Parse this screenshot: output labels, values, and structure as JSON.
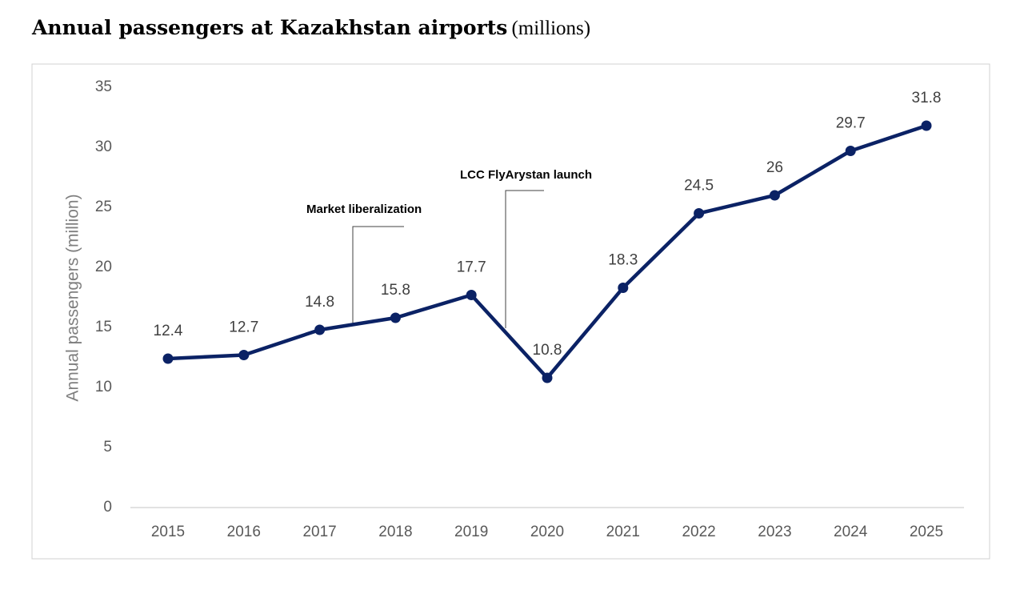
{
  "chart_data": {
    "type": "line",
    "title": "Annual passengers at Kazakhstan airports",
    "subtitle": "(millions)",
    "y_label": "Annual passengers (million)",
    "categories": [
      "2015",
      "2016",
      "2017",
      "2018",
      "2019",
      "2020",
      "2021",
      "2022",
      "2023",
      "2024",
      "2025"
    ],
    "values": [
      12.4,
      12.7,
      14.8,
      15.8,
      17.7,
      10.8,
      18.3,
      24.5,
      26,
      29.7,
      31.8
    ],
    "color": "#0b2265",
    "ylim": [
      0,
      35
    ],
    "yticks": [
      0,
      5,
      10,
      15,
      20,
      25,
      30,
      35
    ],
    "grid": false,
    "annotations": [
      "Market liberalization",
      "LCC FlyArystan launch"
    ]
  }
}
